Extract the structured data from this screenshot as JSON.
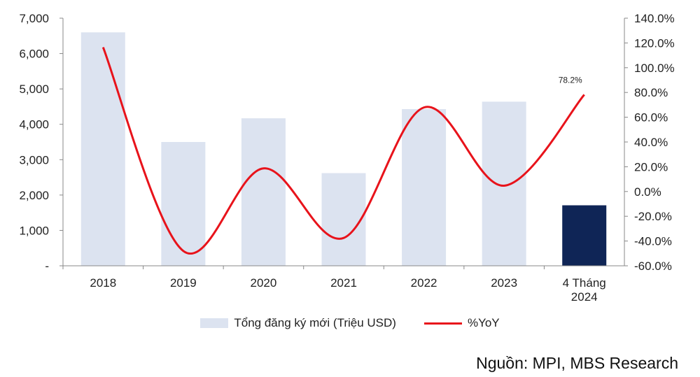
{
  "chart_data": {
    "type": "bar+line",
    "categories": [
      "2018",
      "2019",
      "2020",
      "2021",
      "2022",
      "2023",
      "4 Tháng 2024"
    ],
    "series": [
      {
        "name": "Tổng đăng ký mới (Triệu USD)",
        "type": "bar",
        "axis": "left",
        "values": [
          6600,
          3500,
          4170,
          2620,
          4430,
          4640,
          1710
        ],
        "highlight_index": 6
      },
      {
        "name": "%YoY",
        "type": "line",
        "axis": "right",
        "values": [
          116.5,
          -48.0,
          18.7,
          -37.5,
          67.9,
          4.7,
          78.2
        ]
      }
    ],
    "left_axis": {
      "ticks": [
        "-",
        "1,000",
        "2,000",
        "3,000",
        "4,000",
        "5,000",
        "6,000",
        "7,000"
      ],
      "ylim": [
        0,
        7000
      ]
    },
    "right_axis": {
      "ticks": [
        "-60.0%",
        "-40.0%",
        "-20.0%",
        "0.0%",
        "20.0%",
        "40.0%",
        "60.0%",
        "80.0%",
        "100.0%",
        "120.0%",
        "140.0%"
      ],
      "ylim": [
        -60,
        140
      ]
    },
    "annotation": "78.2%",
    "colors": {
      "bar": "#dce3f0",
      "bar_highlight": "#0f2556",
      "line": "#e8131b"
    },
    "legend_position": "bottom",
    "grid": false
  },
  "legend": {
    "bar_label": "Tổng đăng ký mới (Triệu USD)",
    "line_label": "%YoY"
  },
  "source": "Nguồn: MPI, MBS Research"
}
